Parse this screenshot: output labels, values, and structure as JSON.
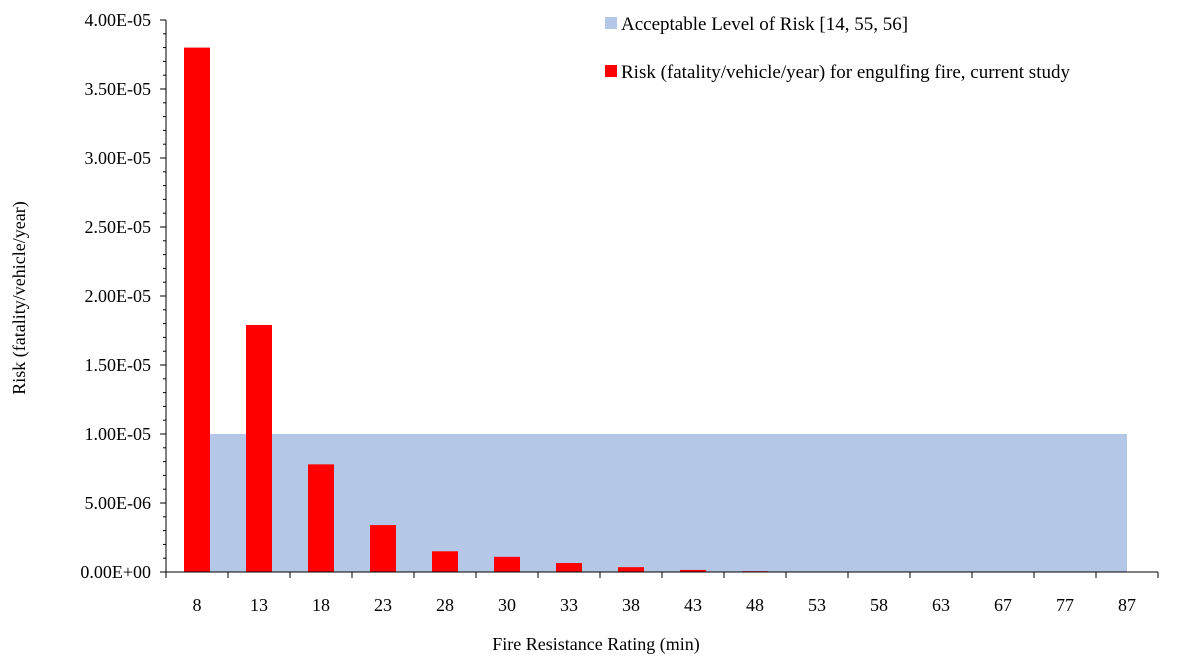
{
  "chart_data": {
    "type": "bar",
    "title": "",
    "xlabel": "Fire Resistance Rating  (min)",
    "ylabel": "Risk (fatality/vehicle/year)",
    "ylim": [
      0,
      4e-05
    ],
    "y_ticks": [
      0,
      5e-06,
      1e-05,
      1.5e-05,
      2e-05,
      2.5e-05,
      3e-05,
      3.5e-05,
      4e-05
    ],
    "y_tick_labels": [
      "0.00E+00",
      "5.00E-06",
      "1.00E-05",
      "1.50E-05",
      "2.00E-05",
      "2.50E-05",
      "3.00E-05",
      "3.50E-05",
      "4.00E-05"
    ],
    "categories": [
      "8",
      "13",
      "18",
      "23",
      "28",
      "30",
      "33",
      "38",
      "43",
      "48",
      "53",
      "58",
      "63",
      "67",
      "77",
      "87"
    ],
    "series": [
      {
        "name": "Acceptable Level of Risk [14, 55, 56]",
        "kind": "area",
        "color": "#b4c7e7",
        "values": [
          1e-05,
          1e-05,
          1e-05,
          1e-05,
          1e-05,
          1e-05,
          1e-05,
          1e-05,
          1e-05,
          1e-05,
          1e-05,
          1e-05,
          1e-05,
          1e-05,
          1e-05,
          1e-05
        ]
      },
      {
        "name": "Risk (fatality/vehicle/year) for engulfing fire, current study",
        "kind": "bar",
        "color": "#ff0000",
        "values": [
          3.8e-05,
          1.79e-05,
          7.8e-06,
          3.4e-06,
          1.5e-06,
          1.1e-06,
          6.5e-07,
          3.5e-07,
          1.5e-07,
          6e-08,
          3e-08,
          2e-08,
          1e-08,
          1e-08,
          5e-09,
          3e-09
        ]
      }
    ],
    "grid": false,
    "legend_position": "top-right"
  }
}
